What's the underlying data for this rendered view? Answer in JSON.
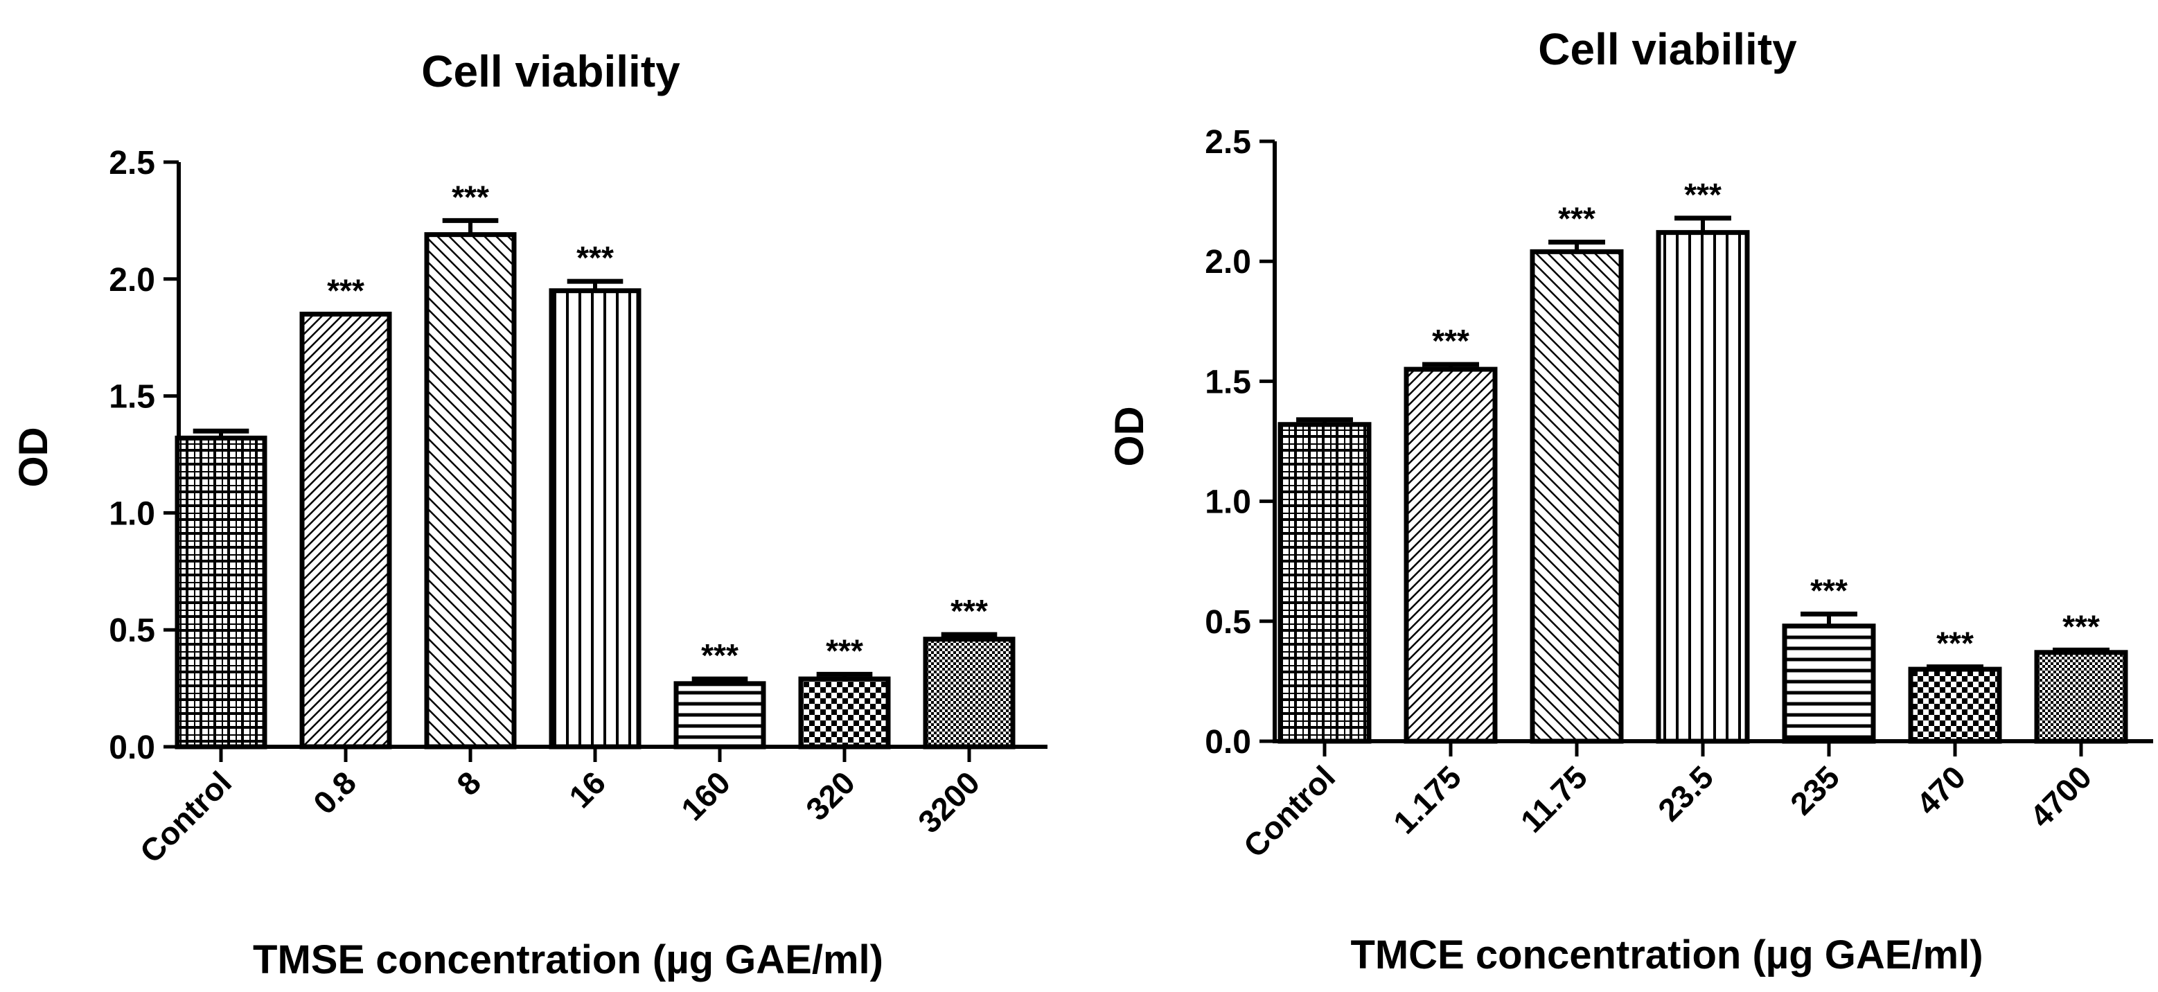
{
  "chart_data": [
    {
      "type": "bar",
      "title": "Cell viability",
      "xlabel": "TMSE concentration (µg GAE/ml)",
      "ylabel": "OD",
      "ylim": [
        0,
        2.5
      ],
      "yticks": [
        "0.0",
        "0.5",
        "1.0",
        "1.5",
        "2.0",
        "2.5"
      ],
      "categories": [
        "Control",
        "0.8",
        "8",
        "16",
        "160",
        "320",
        "3200"
      ],
      "values": [
        1.32,
        1.85,
        2.19,
        1.95,
        0.27,
        0.29,
        0.46
      ],
      "errors": [
        0.03,
        0.0,
        0.06,
        0.04,
        0.02,
        0.02,
        0.02
      ],
      "significance": [
        "",
        "***",
        "***",
        "***",
        "***",
        "***",
        "***"
      ],
      "patterns": [
        "grid",
        "diag-fine",
        "diag",
        "vlines",
        "hlines",
        "checker",
        "dots"
      ],
      "grid": false
    },
    {
      "type": "bar",
      "title": "Cell viability",
      "xlabel": "TMCE concentration (µg GAE/ml)",
      "ylabel": "OD",
      "ylim": [
        0,
        2.5
      ],
      "yticks": [
        "0.0",
        "0.5",
        "1.0",
        "1.5",
        "2.0",
        "2.5"
      ],
      "categories": [
        "Control",
        "1.175",
        "11.75",
        "23.5",
        "235",
        "470",
        "4700"
      ],
      "values": [
        1.32,
        1.55,
        2.04,
        2.12,
        0.48,
        0.3,
        0.37
      ],
      "errors": [
        0.02,
        0.02,
        0.04,
        0.06,
        0.05,
        0.01,
        0.01
      ],
      "significance": [
        "",
        "***",
        "***",
        "***",
        "***",
        "***",
        "***"
      ],
      "patterns": [
        "grid",
        "diag-fine",
        "diag",
        "vlines",
        "hlines",
        "checker",
        "dots"
      ],
      "grid": false
    }
  ]
}
